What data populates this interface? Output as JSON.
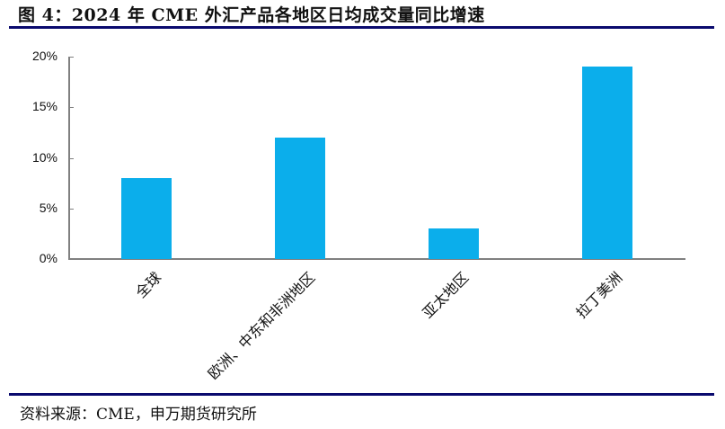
{
  "figure": {
    "title": "图 4：2024 年 CME 外汇产品各地区日均成交量同比增速",
    "source": "资料来源：CME，申万期货研究所"
  },
  "colors": {
    "bar": "#0BAEEB",
    "rule": "#0A0A6E",
    "axis": "#808080"
  },
  "chart_data": {
    "type": "bar",
    "title": "2024 年 CME 外汇产品各地区日均成交量同比增速",
    "categories": [
      "全球",
      "欧洲、中东和非洲地区",
      "亚太地区",
      "拉丁美洲"
    ],
    "values": [
      8,
      12,
      3,
      19
    ],
    "unit": "%",
    "xlabel": "",
    "ylabel": "",
    "ylim": [
      0,
      20
    ],
    "yticks": [
      "0%",
      "5%",
      "10%",
      "15%",
      "20%"
    ],
    "grid": false,
    "legend": "none",
    "x_label_rotation": -45
  }
}
